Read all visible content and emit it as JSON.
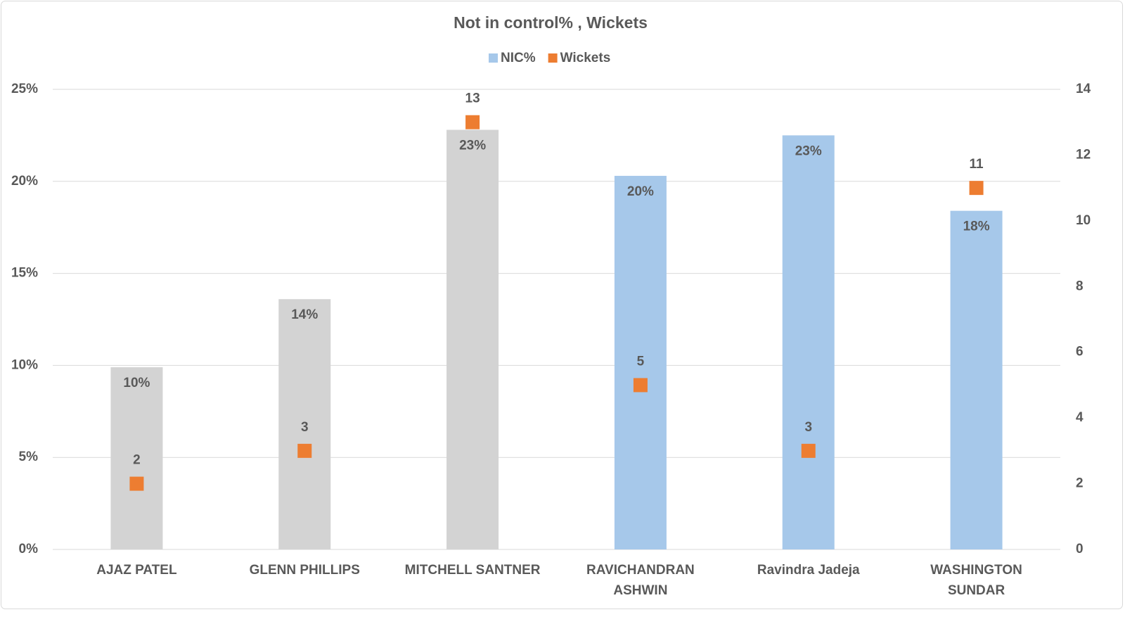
{
  "chart_data": {
    "type": "bar",
    "title": "Not in control% ,  Wickets",
    "categories": [
      "AJAZ PATEL",
      "GLENN PHILLIPS",
      "MITCHELL SANTNER",
      "RAVICHANDRAN ASHWIN",
      "Ravindra Jadeja",
      "WASHINGTON SUNDAR"
    ],
    "series": [
      {
        "name": "NIC%",
        "type": "bar",
        "color": "#a6c8ea",
        "colors": [
          "#d3d3d3",
          "#d3d3d3",
          "#d3d3d3",
          "#a6c8ea",
          "#a6c8ea",
          "#a6c8ea"
        ],
        "values": [
          9.9,
          13.6,
          22.8,
          20.3,
          22.5,
          18.4
        ],
        "value_labels": [
          "10%",
          "14%",
          "23%",
          "20%",
          "23%",
          "18%"
        ]
      },
      {
        "name": "Wickets",
        "type": "scatter",
        "axis": "y2",
        "color": "#ed7d31",
        "values": [
          2,
          3,
          13,
          5,
          3,
          11
        ]
      }
    ],
    "ylim": [
      0,
      25
    ],
    "yticks": [
      {
        "value": 0,
        "label": "0%"
      },
      {
        "value": 5,
        "label": "5%"
      },
      {
        "value": 10,
        "label": "10%"
      },
      {
        "value": 15,
        "label": "15%"
      },
      {
        "value": 20,
        "label": "20%"
      },
      {
        "value": 25,
        "label": "25%"
      }
    ],
    "y2lim": [
      0,
      14
    ],
    "y2ticks": [
      0,
      2,
      4,
      6,
      8,
      10,
      12,
      14
    ],
    "grid": true,
    "legend": "top"
  }
}
